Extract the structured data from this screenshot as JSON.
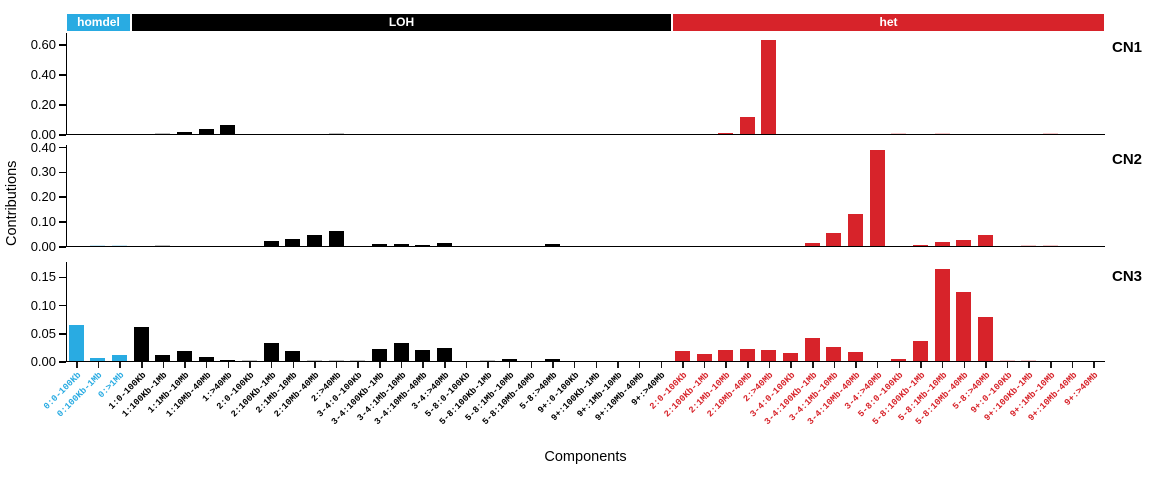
{
  "figure": {
    "ylabel": "Contributions",
    "xlabel": "Components",
    "background": "#ffffff",
    "groups": [
      {
        "name": "homdel",
        "color": "#29ABE2",
        "start": 0,
        "count": 3
      },
      {
        "name": "LOH",
        "color": "#000000",
        "start": 3,
        "count": 25
      },
      {
        "name": "het",
        "color": "#D7232A",
        "start": 28,
        "count": 20
      }
    ]
  },
  "chart_data": {
    "type": "bar",
    "title": "",
    "xlabel": "Components",
    "ylabel": "Contributions",
    "grid": false,
    "legend": "none",
    "facet_labels_right": [
      "CN1",
      "CN2",
      "CN3"
    ],
    "categories": [
      "0:0-100Kb",
      "0:100Kb-1Mb",
      "0:>1Mb",
      "1:0-100Kb",
      "1:100Kb-1Mb",
      "1:1Mb-10Mb",
      "1:10Mb-40Mb",
      "1:>40Mb",
      "2:0-100Kb",
      "2:100Kb-1Mb",
      "2:1Mb-10Mb",
      "2:10Mb-40Mb",
      "2:>40Mb",
      "3-4:0-100Kb",
      "3-4:100Kb-1Mb",
      "3-4:1Mb-10Mb",
      "3-4:10Mb-40Mb",
      "3-4:>40Mb",
      "5-8:0-100Kb",
      "5-8:100Kb-1Mb",
      "5-8:1Mb-10Mb",
      "5-8:10Mb-40Mb",
      "5-8:>40Mb",
      "9+:0-100Kb",
      "9+:100Kb-1Mb",
      "9+:1Mb-10Mb",
      "9+:10Mb-40Mb",
      "9+:>40Mb",
      "2:0-100Kb",
      "2:100Kb-1Mb",
      "2:1Mb-10Mb",
      "2:10Mb-40Mb",
      "2:>40Mb",
      "3-4:0-100Kb",
      "3-4:100Kb-1Mb",
      "3-4:1Mb-10Mb",
      "3-4:10Mb-40Mb",
      "3-4:>40Mb",
      "5-8:0-100Kb",
      "5-8:100Kb-1Mb",
      "5-8:1Mb-10Mb",
      "5-8:10Mb-40Mb",
      "5-8:>40Mb",
      "9+:0-100Kb",
      "9+:100Kb-1Mb",
      "9+:1Mb-10Mb",
      "9+:10Mb-40Mb",
      "9+:>40Mb"
    ],
    "category_group_of_index": {
      "homdel": [
        0,
        2
      ],
      "LOH": [
        3,
        27
      ],
      "het": [
        28,
        47
      ]
    },
    "series": [
      {
        "name": "CN1",
        "ylim": [
          0,
          0.68
        ],
        "yticks": [
          0.0,
          0.2,
          0.4,
          0.6
        ],
        "values": [
          0,
          0,
          0,
          0,
          0.006,
          0.012,
          0.035,
          0.06,
          0,
          0,
          0,
          0,
          0.004,
          0,
          0,
          0,
          0,
          0,
          0,
          0,
          0,
          0,
          0,
          0,
          0,
          0,
          0,
          0,
          0,
          0,
          0.01,
          0.115,
          0.63,
          0,
          0,
          0,
          0,
          0,
          0.003,
          0,
          0.003,
          0,
          0,
          0,
          0,
          0.003,
          0,
          0
        ],
        "muted_indices": [
          4,
          12,
          38,
          40,
          45
        ]
      },
      {
        "name": "CN2",
        "ylim": [
          0,
          0.41
        ],
        "yticks": [
          0.0,
          0.1,
          0.2,
          0.3,
          0.4
        ],
        "values": [
          0,
          0.004,
          0.002,
          0,
          0.003,
          0,
          0,
          0,
          0,
          0.019,
          0.03,
          0.046,
          0.062,
          0,
          0.01,
          0.008,
          0.005,
          0.012,
          0,
          0,
          0,
          0,
          0.008,
          0,
          0,
          0,
          0,
          0,
          0,
          0,
          0,
          0,
          0,
          0,
          0.014,
          0.053,
          0.13,
          0.385,
          0,
          0.006,
          0.016,
          0.024,
          0.044,
          0,
          0.002,
          0.002,
          0,
          0
        ],
        "muted_indices": [
          1,
          2,
          4,
          44,
          45
        ]
      },
      {
        "name": "CN3",
        "ylim": [
          0,
          0.177
        ],
        "yticks": [
          0.0,
          0.05,
          0.1,
          0.15
        ],
        "values": [
          0.063,
          0.005,
          0.011,
          0.06,
          0.011,
          0.017,
          0.007,
          0.002,
          0.001,
          0.032,
          0.017,
          0.002,
          0.001,
          0.001,
          0.022,
          0.032,
          0.02,
          0.023,
          0,
          0.001,
          0.003,
          0,
          0.003,
          0,
          0,
          0,
          0,
          0,
          0.018,
          0.012,
          0.02,
          0.021,
          0.02,
          0.014,
          0.04,
          0.024,
          0.016,
          0,
          0.003,
          0.036,
          0.163,
          0.122,
          0.078,
          0.001,
          0.001,
          0,
          0,
          0
        ],
        "muted_indices": [
          8,
          11,
          12,
          13,
          19,
          43,
          44
        ]
      }
    ]
  }
}
